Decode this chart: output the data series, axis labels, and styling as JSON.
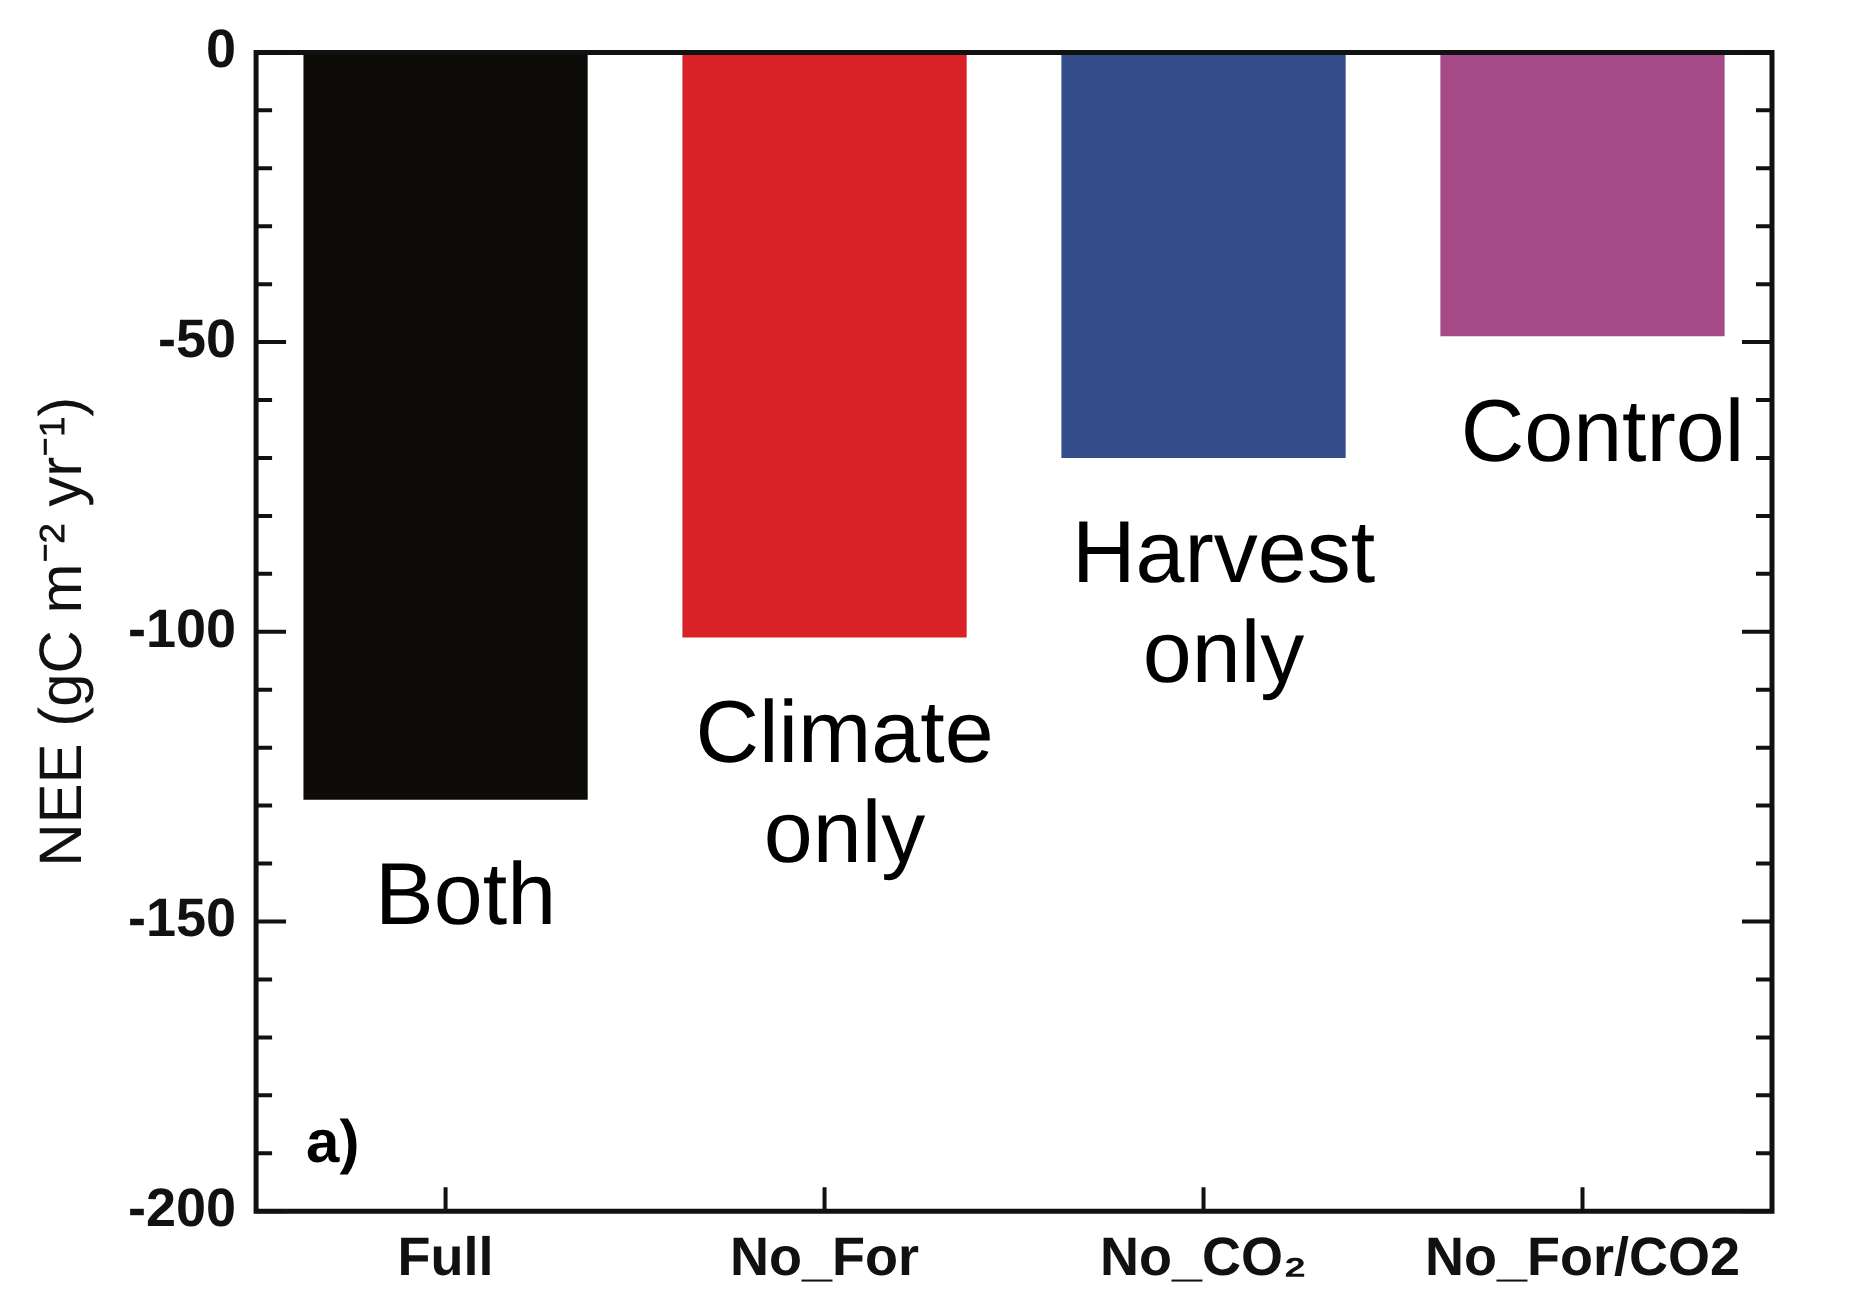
{
  "chart_data": {
    "type": "bar",
    "ylabel": "NEE (gC m⁻² yr⁻¹)",
    "categories": [
      "Full",
      "No_For",
      "No_CO₂",
      "No_For/CO2"
    ],
    "values": [
      -129,
      -101,
      -70,
      -49
    ],
    "colors": [
      "#0d0b08",
      "#d82228",
      "#334d8a",
      "#a54a87"
    ],
    "ylim": [
      -200,
      0
    ],
    "yticks": [
      {
        "value": -200,
        "label": "-200"
      },
      {
        "value": -190,
        "label": null
      },
      {
        "value": -180,
        "label": null
      },
      {
        "value": -170,
        "label": null
      },
      {
        "value": -160,
        "label": null
      },
      {
        "value": -150,
        "label": "-150"
      },
      {
        "value": -140,
        "label": null
      },
      {
        "value": -130,
        "label": null
      },
      {
        "value": -120,
        "label": null
      },
      {
        "value": -110,
        "label": null
      },
      {
        "value": -100,
        "label": "-100"
      },
      {
        "value": -90,
        "label": null
      },
      {
        "value": -80,
        "label": null
      },
      {
        "value": -70,
        "label": null
      },
      {
        "value": -60,
        "label": null
      },
      {
        "value": -50,
        "label": "-50"
      },
      {
        "value": -40,
        "label": null
      },
      {
        "value": -30,
        "label": null
      },
      {
        "value": -20,
        "label": null
      },
      {
        "value": -10,
        "label": null
      },
      {
        "value": 0,
        "label": "0"
      }
    ],
    "annotations": [
      {
        "text": "Both",
        "x": "Full",
        "y": -129
      },
      {
        "text": "Climate only",
        "x": "No_For",
        "y": -101
      },
      {
        "text": "Harvest only",
        "x": "No_CO₂",
        "y": -70
      },
      {
        "text": "Control",
        "x": "No_For/CO2",
        "y": -49
      },
      "a)"
    ],
    "grid": false,
    "legend": false
  }
}
